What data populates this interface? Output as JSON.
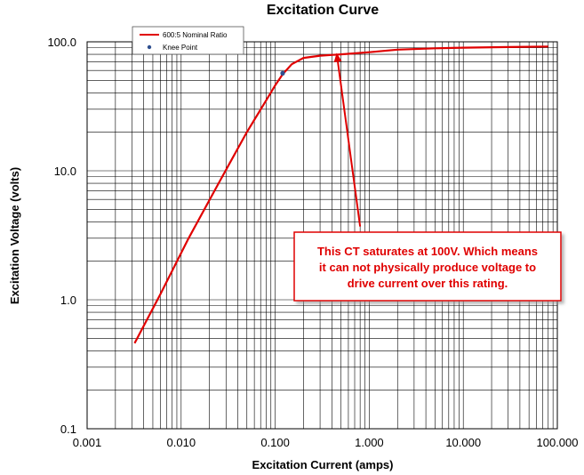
{
  "chart_data": {
    "type": "line",
    "title": "Excitation Curve",
    "xlabel": "Excitation Current (amps)",
    "ylabel": "Excitation Voltage (volts)",
    "xscale": "log",
    "yscale": "log",
    "xlim": [
      0.001,
      100
    ],
    "ylim": [
      0.1,
      100
    ],
    "x_ticks": [
      {
        "value": 0.001,
        "label": "0.001"
      },
      {
        "value": 0.01,
        "label": "0.010"
      },
      {
        "value": 0.1,
        "label": "0.100"
      },
      {
        "value": 1,
        "label": "1.000"
      },
      {
        "value": 10,
        "label": "10.000"
      },
      {
        "value": 100,
        "label": "100.000"
      }
    ],
    "y_ticks": [
      {
        "value": 0.1,
        "label": "0.1"
      },
      {
        "value": 1,
        "label": "1.0"
      },
      {
        "value": 10,
        "label": "10.0"
      },
      {
        "value": 100,
        "label": "100.0"
      }
    ],
    "grid": true,
    "legend_position": "top-left",
    "series": [
      {
        "name": "600:5  Nominal Ratio",
        "color": "#e00000",
        "points": [
          {
            "x": 0.0032,
            "y": 0.46
          },
          {
            "x": 0.006,
            "y": 1.1
          },
          {
            "x": 0.012,
            "y": 3.0
          },
          {
            "x": 0.025,
            "y": 8.0
          },
          {
            "x": 0.05,
            "y": 20
          },
          {
            "x": 0.08,
            "y": 35
          },
          {
            "x": 0.1,
            "y": 46
          },
          {
            "x": 0.12,
            "y": 56
          },
          {
            "x": 0.15,
            "y": 67
          },
          {
            "x": 0.2,
            "y": 75
          },
          {
            "x": 0.3,
            "y": 78
          },
          {
            "x": 0.5,
            "y": 80
          },
          {
            "x": 1,
            "y": 83
          },
          {
            "x": 2,
            "y": 87
          },
          {
            "x": 5,
            "y": 89
          },
          {
            "x": 10,
            "y": 90
          },
          {
            "x": 30,
            "y": 91
          },
          {
            "x": 80,
            "y": 92
          }
        ]
      },
      {
        "name": "Knee Point",
        "color": "#2e4f8f",
        "points": [
          {
            "x": 0.12,
            "y": 57
          }
        ]
      }
    ],
    "annotation": {
      "lines": [
        "This CT saturates at 100V.  Which means",
        "it can not physically produce voltage to",
        "drive current over this rating."
      ],
      "color": "#e00000",
      "arrow_target": {
        "x": 0.45,
        "y": 82
      },
      "arrow_tail": {
        "x": 0.8,
        "y": 3.7
      }
    }
  }
}
